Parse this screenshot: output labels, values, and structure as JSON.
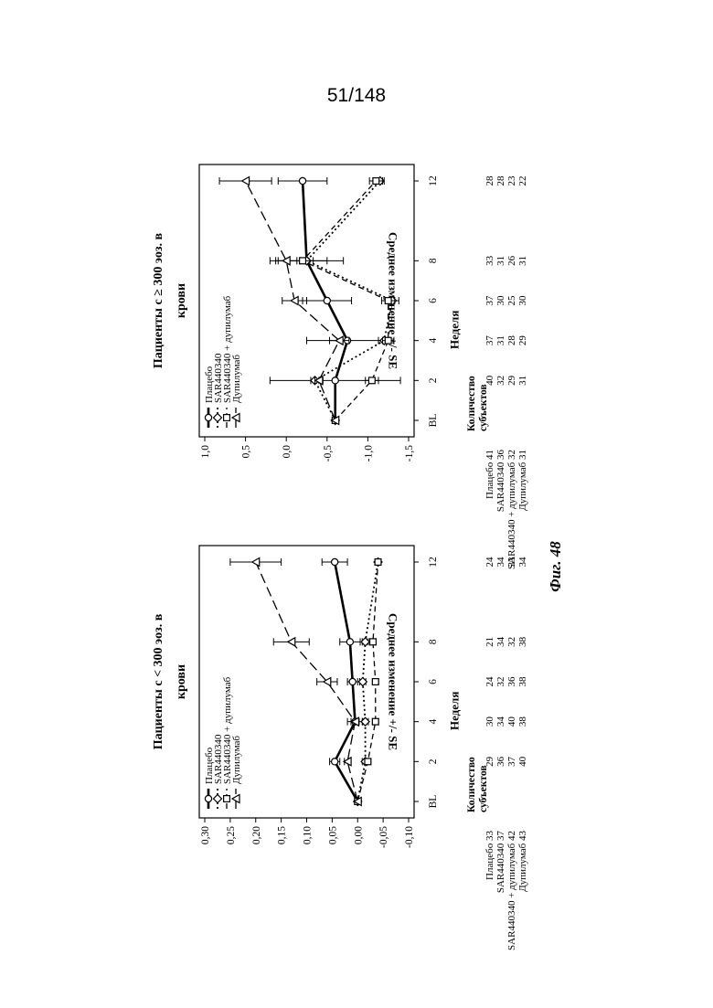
{
  "page_number": "51/148",
  "figure_caption": "Фиг. 48",
  "chart_data": [
    {
      "type": "line",
      "title": "Пациенты с < 300 эоз. в крови",
      "xlabel": "Неделя",
      "ylabel": "Среднее изменение +/- SE",
      "x": [
        "BL",
        "2",
        "4",
        "6",
        "8",
        "12"
      ],
      "x_numeric": [
        0,
        2,
        4,
        6,
        8,
        12
      ],
      "ylim": [
        -0.1,
        0.3
      ],
      "yticks": [
        0.3,
        0.25,
        0.2,
        0.15,
        0.1,
        0.05,
        0.0,
        -0.05,
        -0.1
      ],
      "ytick_labels": [
        "0,30",
        "0,25",
        "0,20",
        "0,15",
        "0,10",
        "0,05",
        "0,00",
        "-0,05",
        "-0,10"
      ],
      "legend_position": "top-left",
      "series": [
        {
          "name": "Плацебо",
          "style": "solid-bold",
          "marker": "circle",
          "values": [
            0.0,
            0.045,
            0.005,
            0.01,
            0.015,
            0.045
          ],
          "err": [
            0.0,
            0.01,
            0.015,
            0.01,
            0.02,
            0.025
          ]
        },
        {
          "name": "SAR440340",
          "style": "dotted",
          "marker": "diamond",
          "values": [
            0.0,
            -0.015,
            -0.015,
            -0.01,
            -0.015,
            -0.04
          ],
          "err": [
            0.0,
            0.006,
            0.006,
            0.006,
            0.006,
            0.006
          ]
        },
        {
          "name": "SAR440340 + дупилумаб",
          "style": "dashed",
          "marker": "square",
          "values": [
            0.0,
            -0.02,
            -0.035,
            -0.035,
            -0.03,
            -0.04
          ],
          "err": [
            0.0,
            0.006,
            0.006,
            0.006,
            0.006,
            0.006
          ]
        },
        {
          "name": "Дупилумаб",
          "style": "long-dashed",
          "marker": "triangle",
          "values": [
            0.0,
            0.02,
            0.005,
            0.06,
            0.13,
            0.2
          ],
          "err": [
            0.0,
            0.006,
            0.008,
            0.02,
            0.035,
            0.05
          ]
        }
      ],
      "table_header": "Количество субъектов",
      "table": [
        {
          "label": "Плацебо 33",
          "counts": [
            "29",
            "30",
            "24",
            "21",
            "24"
          ]
        },
        {
          "label": "SAR440340 37",
          "counts": [
            "36",
            "34",
            "32",
            "34",
            "34"
          ]
        },
        {
          "label": "SAR440340 + дупилумаб 42",
          "counts": [
            "37",
            "40",
            "36",
            "32",
            "33"
          ]
        },
        {
          "label": "Дупилумаб 43",
          "counts": [
            "40",
            "38",
            "38",
            "38",
            "34"
          ]
        }
      ]
    },
    {
      "type": "line",
      "title": "Пациенты с ≥ 300 эоз. в крови",
      "xlabel": "Неделя",
      "ylabel": "Среднее изменение +/- SE",
      "x": [
        "BL",
        "2",
        "4",
        "6",
        "8",
        "12"
      ],
      "x_numeric": [
        0,
        2,
        4,
        6,
        8,
        12
      ],
      "ylim": [
        -1.5,
        1.0
      ],
      "yticks": [
        1.0,
        0.5,
        0.0,
        -0.5,
        -1.0,
        -1.5
      ],
      "ytick_labels": [
        "1,0",
        "0,5",
        "0,0",
        "-0,5",
        "-1,0",
        "-1,5"
      ],
      "legend_position": "top-left",
      "series": [
        {
          "name": "Плацебо",
          "style": "solid-bold",
          "marker": "circle",
          "values": [
            -0.6,
            -0.6,
            -0.75,
            -0.5,
            -0.25,
            -0.2
          ],
          "err": [
            0.0,
            0.8,
            0.5,
            0.3,
            0.45,
            0.3
          ]
        },
        {
          "name": "SAR440340",
          "style": "dotted",
          "marker": "diamond",
          "values": [
            -0.6,
            -0.35,
            -1.2,
            -1.3,
            -0.25,
            -1.15
          ],
          "err": [
            0.0,
            0.05,
            0.07,
            0.08,
            0.08,
            0.05
          ]
        },
        {
          "name": "SAR440340 + дупилумаб",
          "style": "dashed",
          "marker": "square",
          "values": [
            -0.6,
            -1.05,
            -1.25,
            -1.25,
            -0.2,
            -1.1
          ],
          "err": [
            0.0,
            0.08,
            0.07,
            0.08,
            0.3,
            0.08
          ]
        },
        {
          "name": "Дупилумаб",
          "style": "long-dashed",
          "marker": "triangle",
          "values": [
            -0.6,
            -0.4,
            -0.65,
            -0.1,
            0.0,
            0.5
          ],
          "err": [
            0.0,
            0.05,
            0.12,
            0.15,
            0.13,
            0.32
          ]
        }
      ],
      "table_header": "Количество субъектов",
      "table": [
        {
          "label": "Плацебо 41",
          "counts": [
            "40",
            "37",
            "37",
            "33",
            "28"
          ]
        },
        {
          "label": "SAR440340 36",
          "counts": [
            "32",
            "31",
            "30",
            "31",
            "28"
          ]
        },
        {
          "label": "SAR440340 + дупилумаб 32",
          "counts": [
            "29",
            "28",
            "25",
            "26",
            "23"
          ]
        },
        {
          "label": "Дупилумаб 31",
          "counts": [
            "31",
            "29",
            "30",
            "31",
            "22"
          ]
        }
      ]
    }
  ]
}
